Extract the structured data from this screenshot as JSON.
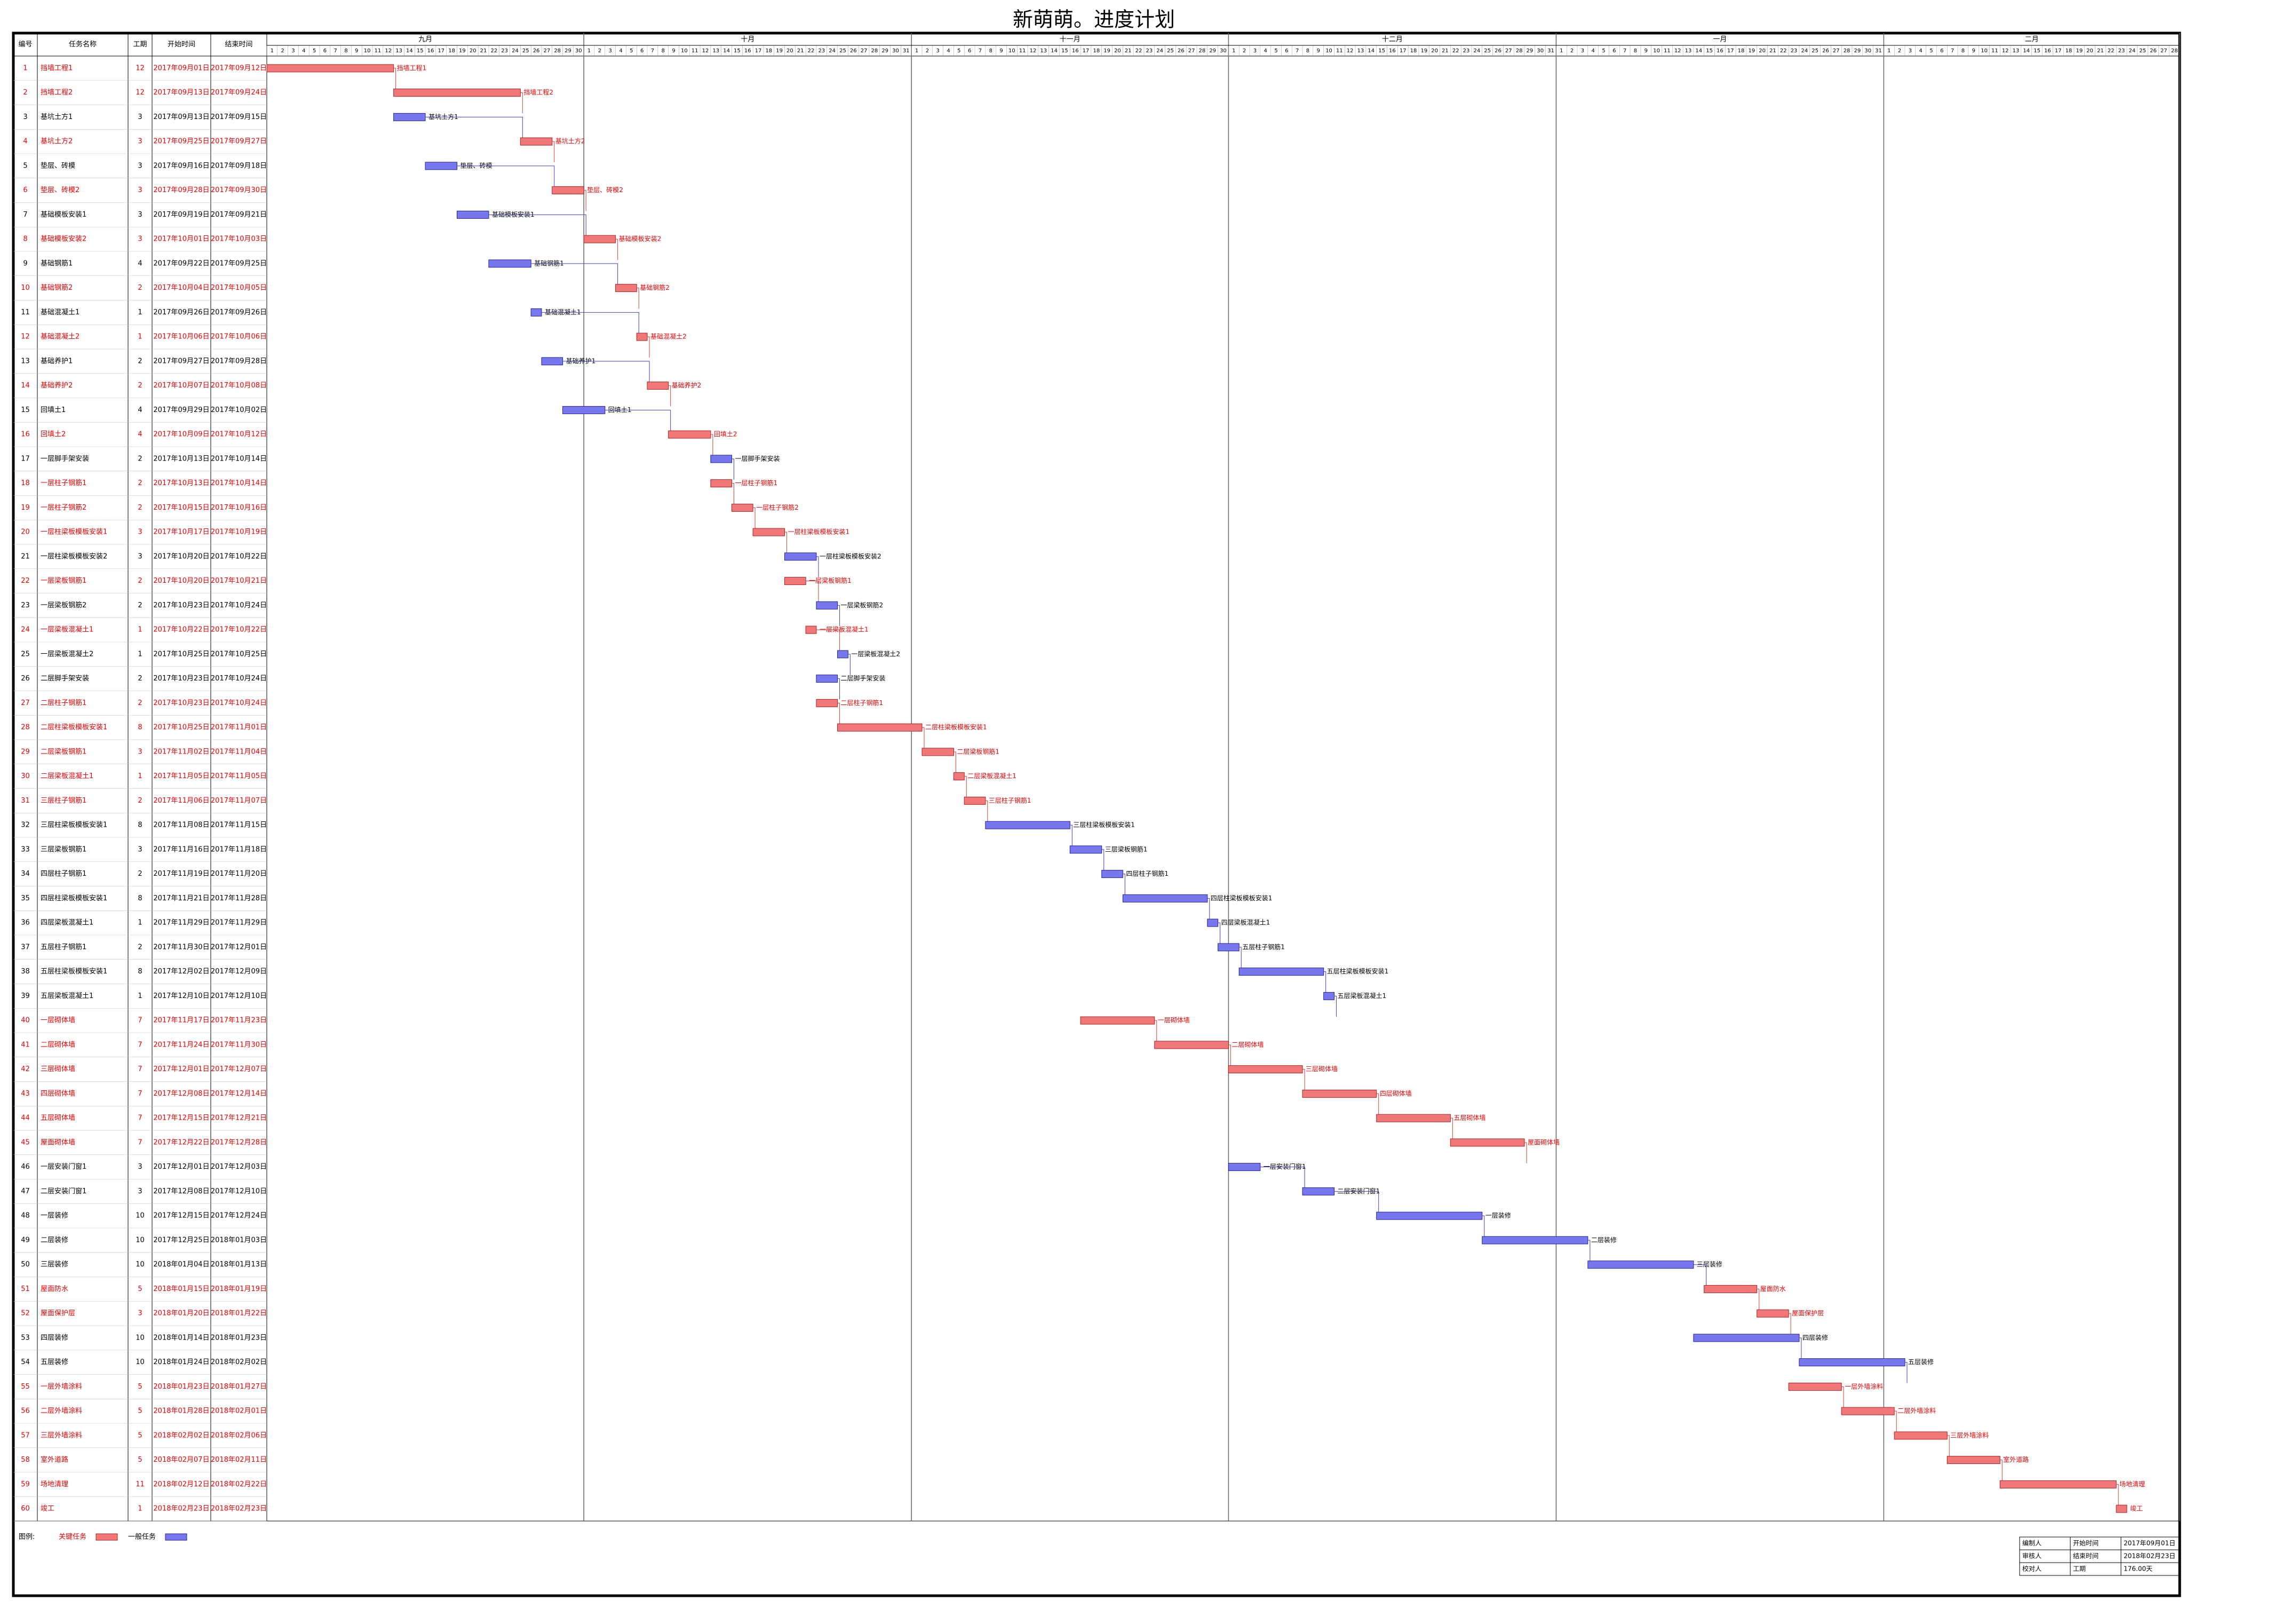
{
  "title": "新萌萌。进度计划",
  "columns": [
    "编号",
    "任务名称",
    "工期",
    "开始时间",
    "结束时间"
  ],
  "months": [
    {
      "label": "九月",
      "days": [
        1,
        2,
        3,
        4,
        5,
        6,
        7,
        8,
        9,
        10,
        11,
        12,
        13,
        14,
        15,
        16,
        17,
        18,
        19,
        20,
        21,
        22,
        23,
        24,
        25,
        26,
        27,
        28,
        29,
        30
      ]
    },
    {
      "label": "十月",
      "days": [
        1,
        2,
        3,
        4,
        5,
        6,
        7,
        8,
        9,
        10,
        11,
        12,
        13,
        14,
        15,
        16,
        17,
        18,
        19,
        20,
        21,
        22,
        23,
        24,
        25,
        26,
        27,
        28,
        29,
        30,
        31
      ]
    },
    {
      "label": "十一月",
      "days": [
        1,
        2,
        3,
        4,
        5,
        6,
        7,
        8,
        9,
        10,
        11,
        12,
        13,
        14,
        15,
        16,
        17,
        18,
        19,
        20,
        21,
        22,
        23,
        24,
        25,
        26,
        27,
        28,
        29,
        30
      ]
    },
    {
      "label": "十二月",
      "days": [
        1,
        2,
        3,
        4,
        5,
        6,
        7,
        8,
        9,
        10,
        11,
        12,
        13,
        14,
        15,
        16,
        17,
        18,
        19,
        20,
        21,
        22,
        23,
        24,
        25,
        26,
        27,
        28,
        29,
        30,
        31
      ]
    },
    {
      "label": "一月",
      "days": [
        1,
        2,
        3,
        4,
        5,
        6,
        7,
        8,
        9,
        10,
        11,
        12,
        13,
        14,
        15,
        16,
        17,
        18,
        19,
        20,
        21,
        22,
        23,
        24,
        25,
        26,
        27,
        28,
        29,
        30,
        31
      ]
    },
    {
      "label": "二月",
      "days": [
        1,
        2,
        3,
        4,
        5,
        6,
        7,
        8,
        9,
        10,
        11,
        12,
        13,
        14,
        15,
        16,
        17,
        18,
        19,
        20,
        21,
        22,
        23,
        24,
        25,
        26,
        27,
        28
      ]
    }
  ],
  "tasks": [
    {
      "id": 1,
      "name": "挡墙工程1",
      "duration": 12,
      "start": "2017年09月01日",
      "end": "2017年09月12日",
      "critical": true
    },
    {
      "id": 2,
      "name": "挡墙工程2",
      "duration": 12,
      "start": "2017年09月13日",
      "end": "2017年09月24日",
      "critical": true
    },
    {
      "id": 3,
      "name": "基坑土方1",
      "duration": 3,
      "start": "2017年09月13日",
      "end": "2017年09月15日",
      "critical": false
    },
    {
      "id": 4,
      "name": "基坑土方2",
      "duration": 3,
      "start": "2017年09月25日",
      "end": "2017年09月27日",
      "critical": true
    },
    {
      "id": 5,
      "name": "垫层、砖模",
      "duration": 3,
      "start": "2017年09月16日",
      "end": "2017年09月18日",
      "critical": false
    },
    {
      "id": 6,
      "name": "垫层、砖模2",
      "duration": 3,
      "start": "2017年09月28日",
      "end": "2017年09月30日",
      "critical": true
    },
    {
      "id": 7,
      "name": "基础模板安装1",
      "duration": 3,
      "start": "2017年09月19日",
      "end": "2017年09月21日",
      "critical": false
    },
    {
      "id": 8,
      "name": "基础模板安装2",
      "duration": 3,
      "start": "2017年10月01日",
      "end": "2017年10月03日",
      "critical": true
    },
    {
      "id": 9,
      "name": "基础钢筋1",
      "duration": 4,
      "start": "2017年09月22日",
      "end": "2017年09月25日",
      "critical": false
    },
    {
      "id": 10,
      "name": "基础钢筋2",
      "duration": 2,
      "start": "2017年10月04日",
      "end": "2017年10月05日",
      "critical": true
    },
    {
      "id": 11,
      "name": "基础混凝土1",
      "duration": 1,
      "start": "2017年09月26日",
      "end": "2017年09月26日",
      "critical": false
    },
    {
      "id": 12,
      "name": "基础混凝土2",
      "duration": 1,
      "start": "2017年10月06日",
      "end": "2017年10月06日",
      "critical": true
    },
    {
      "id": 13,
      "name": "基础养护1",
      "duration": 2,
      "start": "2017年09月27日",
      "end": "2017年09月28日",
      "critical": false
    },
    {
      "id": 14,
      "name": "基础养护2",
      "duration": 2,
      "start": "2017年10月07日",
      "end": "2017年10月08日",
      "critical": true
    },
    {
      "id": 15,
      "name": "回填土1",
      "duration": 4,
      "start": "2017年09月29日",
      "end": "2017年10月02日",
      "critical": false
    },
    {
      "id": 16,
      "name": "回填土2",
      "duration": 4,
      "start": "2017年10月09日",
      "end": "2017年10月12日",
      "critical": true
    },
    {
      "id": 17,
      "name": "一层脚手架安装",
      "duration": 2,
      "start": "2017年10月13日",
      "end": "2017年10月14日",
      "critical": false
    },
    {
      "id": 18,
      "name": "一层柱子钢筋1",
      "duration": 2,
      "start": "2017年10月13日",
      "end": "2017年10月14日",
      "critical": true
    },
    {
      "id": 19,
      "name": "一层柱子钢筋2",
      "duration": 2,
      "start": "2017年10月15日",
      "end": "2017年10月16日",
      "critical": true
    },
    {
      "id": 20,
      "name": "一层柱梁板模板安装1",
      "duration": 3,
      "start": "2017年10月17日",
      "end": "2017年10月19日",
      "critical": true
    },
    {
      "id": 21,
      "name": "一层柱梁板模板安装2",
      "duration": 3,
      "start": "2017年10月20日",
      "end": "2017年10月22日",
      "critical": false
    },
    {
      "id": 22,
      "name": "一层梁板钢筋1",
      "duration": 2,
      "start": "2017年10月20日",
      "end": "2017年10月21日",
      "critical": true
    },
    {
      "id": 23,
      "name": "一层梁板钢筋2",
      "duration": 2,
      "start": "2017年10月23日",
      "end": "2017年10月24日",
      "critical": false
    },
    {
      "id": 24,
      "name": "一层梁板混凝土1",
      "duration": 1,
      "start": "2017年10月22日",
      "end": "2017年10月22日",
      "critical": true
    },
    {
      "id": 25,
      "name": "一层梁板混凝土2",
      "duration": 1,
      "start": "2017年10月25日",
      "end": "2017年10月25日",
      "critical": false
    },
    {
      "id": 26,
      "name": "二层脚手架安装",
      "duration": 2,
      "start": "2017年10月23日",
      "end": "2017年10月24日",
      "critical": false
    },
    {
      "id": 27,
      "name": "二层柱子钢筋1",
      "duration": 2,
      "start": "2017年10月23日",
      "end": "2017年10月24日",
      "critical": true
    },
    {
      "id": 28,
      "name": "二层柱梁板模板安装1",
      "duration": 8,
      "start": "2017年10月25日",
      "end": "2017年11月01日",
      "critical": true
    },
    {
      "id": 29,
      "name": "二层梁板钢筋1",
      "duration": 3,
      "start": "2017年11月02日",
      "end": "2017年11月04日",
      "critical": true
    },
    {
      "id": 30,
      "name": "二层梁板混凝土1",
      "duration": 1,
      "start": "2017年11月05日",
      "end": "2017年11月05日",
      "critical": true
    },
    {
      "id": 31,
      "name": "三层柱子钢筋1",
      "duration": 2,
      "start": "2017年11月06日",
      "end": "2017年11月07日",
      "critical": true
    },
    {
      "id": 32,
      "name": "三层柱梁板模板安装1",
      "duration": 8,
      "start": "2017年11月08日",
      "end": "2017年11月15日",
      "critical": false
    },
    {
      "id": 33,
      "name": "三层梁板钢筋1",
      "duration": 3,
      "start": "2017年11月16日",
      "end": "2017年11月18日",
      "critical": false
    },
    {
      "id": 34,
      "name": "四层柱子钢筋1",
      "duration": 2,
      "start": "2017年11月19日",
      "end": "2017年11月20日",
      "critical": false
    },
    {
      "id": 35,
      "name": "四层柱梁板模板安装1",
      "duration": 8,
      "start": "2017年11月21日",
      "end": "2017年11月28日",
      "critical": false
    },
    {
      "id": 36,
      "name": "四层梁板混凝土1",
      "duration": 1,
      "start": "2017年11月29日",
      "end": "2017年11月29日",
      "critical": false
    },
    {
      "id": 37,
      "name": "五层柱子钢筋1",
      "duration": 2,
      "start": "2017年11月30日",
      "end": "2017年12月01日",
      "critical": false
    },
    {
      "id": 38,
      "name": "五层柱梁板模板安装1",
      "duration": 8,
      "start": "2017年12月02日",
      "end": "2017年12月09日",
      "critical": false
    },
    {
      "id": 39,
      "name": "五层梁板混凝土1",
      "duration": 1,
      "start": "2017年12月10日",
      "end": "2017年12月10日",
      "critical": false
    },
    {
      "id": 40,
      "name": "一层砌体墙",
      "duration": 7,
      "start": "2017年11月17日",
      "end": "2017年11月23日",
      "critical": true
    },
    {
      "id": 41,
      "name": "二层砌体墙",
      "duration": 7,
      "start": "2017年11月24日",
      "end": "2017年11月30日",
      "critical": true
    },
    {
      "id": 42,
      "name": "三层砌体墙",
      "duration": 7,
      "start": "2017年12月01日",
      "end": "2017年12月07日",
      "critical": true
    },
    {
      "id": 43,
      "name": "四层砌体墙",
      "duration": 7,
      "start": "2017年12月08日",
      "end": "2017年12月14日",
      "critical": true
    },
    {
      "id": 44,
      "name": "五层砌体墙",
      "duration": 7,
      "start": "2017年12月15日",
      "end": "2017年12月21日",
      "critical": true
    },
    {
      "id": 45,
      "name": "屋面砌体墙",
      "duration": 7,
      "start": "2017年12月22日",
      "end": "2017年12月28日",
      "critical": true
    },
    {
      "id": 46,
      "name": "一层安装门窗1",
      "duration": 3,
      "start": "2017年12月01日",
      "end": "2017年12月03日",
      "critical": false
    },
    {
      "id": 47,
      "name": "二层安装门窗1",
      "duration": 3,
      "start": "2017年12月08日",
      "end": "2017年12月10日",
      "critical": false
    },
    {
      "id": 48,
      "name": "一层装修",
      "duration": 10,
      "start": "2017年12月15日",
      "end": "2017年12月24日",
      "critical": false
    },
    {
      "id": 49,
      "name": "二层装修",
      "duration": 10,
      "start": "2017年12月25日",
      "end": "2018年01月03日",
      "critical": false
    },
    {
      "id": 50,
      "name": "三层装修",
      "duration": 10,
      "start": "2018年01月04日",
      "end": "2018年01月13日",
      "critical": false
    },
    {
      "id": 51,
      "name": "屋面防水",
      "duration": 5,
      "start": "2018年01月15日",
      "end": "2018年01月19日",
      "critical": true
    },
    {
      "id": 52,
      "name": "屋面保护层",
      "duration": 3,
      "start": "2018年01月20日",
      "end": "2018年01月22日",
      "critical": true
    },
    {
      "id": 53,
      "name": "四层装修",
      "duration": 10,
      "start": "2018年01月14日",
      "end": "2018年01月23日",
      "critical": false
    },
    {
      "id": 54,
      "name": "五层装修",
      "duration": 10,
      "start": "2018年01月24日",
      "end": "2018年02月02日",
      "critical": false
    },
    {
      "id": 55,
      "name": "一层外墙涂料",
      "duration": 5,
      "start": "2018年01月23日",
      "end": "2018年01月27日",
      "critical": true
    },
    {
      "id": 56,
      "name": "二层外墙涂料",
      "duration": 5,
      "start": "2018年01月28日",
      "end": "2018年02月01日",
      "critical": true
    },
    {
      "id": 57,
      "name": "三层外墙涂料",
      "duration": 5,
      "start": "2018年02月02日",
      "end": "2018年02月06日",
      "critical": true
    },
    {
      "id": 58,
      "name": "室外道路",
      "duration": 5,
      "start": "2018年02月07日",
      "end": "2018年02月11日",
      "critical": true
    },
    {
      "id": 59,
      "name": "场地清理",
      "duration": 11,
      "start": "2018年02月12日",
      "end": "2018年02月22日",
      "critical": true
    },
    {
      "id": 60,
      "name": "竣工",
      "duration": 1,
      "start": "2018年02月23日",
      "end": "2018年02月23日",
      "critical": true
    }
  ],
  "legend": {
    "label": "图例:",
    "critical": "关键任务",
    "normal": "一般任务"
  },
  "info": [
    [
      "编制人",
      "开始时间",
      "2017年09月01日"
    ],
    [
      "审核人",
      "结束时间",
      "2018年02月23日"
    ],
    [
      "校对人",
      "工期",
      "176.00天"
    ]
  ]
}
